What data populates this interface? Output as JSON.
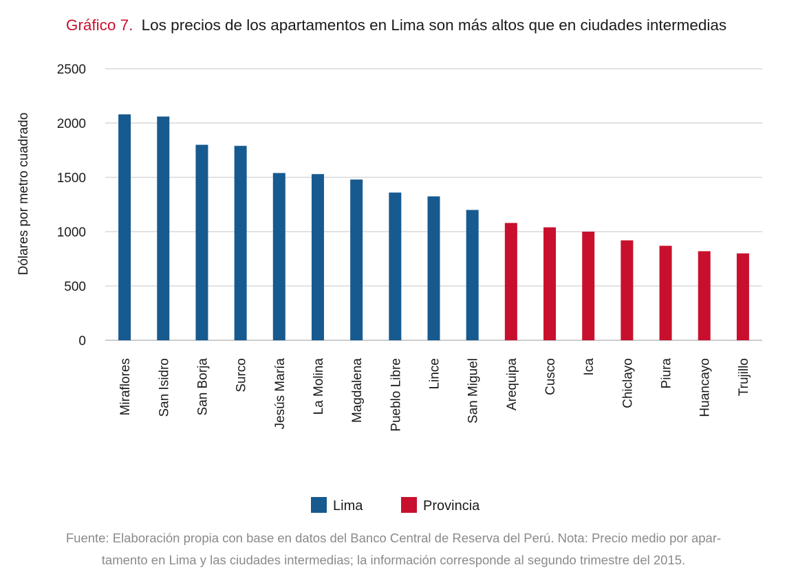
{
  "chart_data": {
    "type": "bar",
    "title_prefix": "Gráfico 7.",
    "title": "Los precios de los apartamentos en Lima son más altos que en ciudades intermedias",
    "ylabel": "Dólares por metro cuadrado",
    "xlabel": "",
    "ylim": [
      0,
      2500
    ],
    "yticks": [
      0,
      500,
      1000,
      1500,
      2000,
      2500
    ],
    "grid": true,
    "legend_position": "bottom",
    "categories": [
      "Miraflores",
      "San Isidro",
      "San Borja",
      "Surco",
      "Jesús María",
      "La Molina",
      "Magdalena",
      "Pueblo Libre",
      "Lince",
      "San Miguel",
      "Arequipa",
      "Cusco",
      "Ica",
      "Chiclayo",
      "Piura",
      "Huancayo",
      "Trujillo"
    ],
    "values": [
      2080,
      2060,
      1800,
      1790,
      1540,
      1530,
      1480,
      1360,
      1325,
      1200,
      1080,
      1040,
      1000,
      920,
      870,
      820,
      800
    ],
    "groups": [
      "Lima",
      "Lima",
      "Lima",
      "Lima",
      "Lima",
      "Lima",
      "Lima",
      "Lima",
      "Lima",
      "Lima",
      "Provincia",
      "Provincia",
      "Provincia",
      "Provincia",
      "Provincia",
      "Provincia",
      "Provincia"
    ],
    "series": [
      {
        "name": "Lima",
        "color": "#175a8f"
      },
      {
        "name": "Provincia",
        "color": "#c8102e"
      }
    ]
  },
  "footnote": {
    "line1": "Fuente: Elaboración propia con base en datos del Banco Central de Reserva del Perú. Nota: Precio medio por apar-",
    "line2": "tamento en Lima y las ciudades intermedias; la información corresponde al segundo trimestre del 2015."
  }
}
